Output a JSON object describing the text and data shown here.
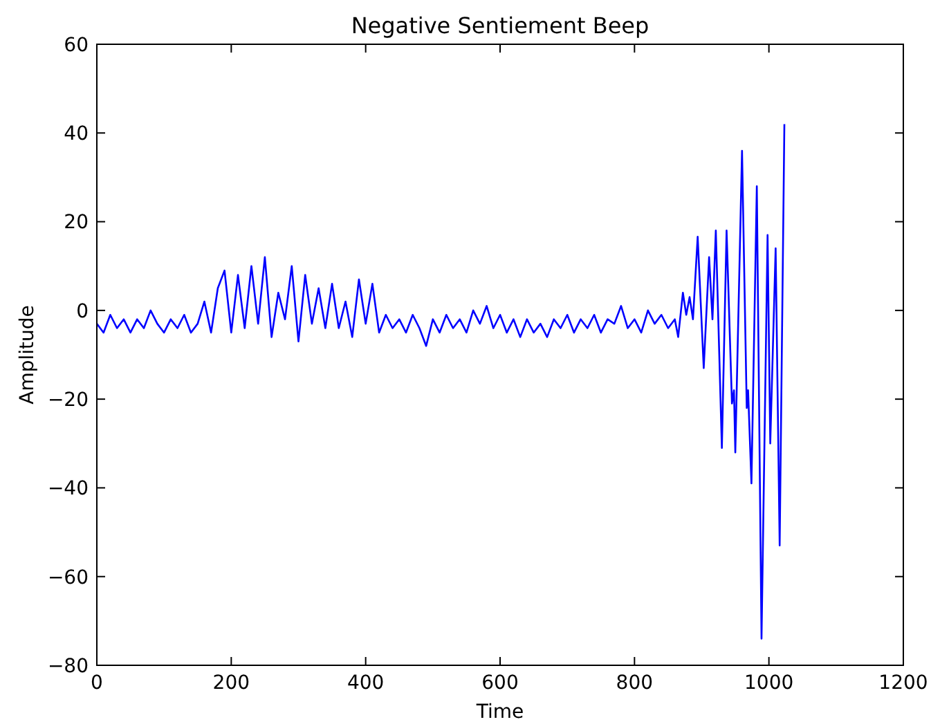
{
  "chart_data": {
    "type": "line",
    "title": "Negative Sentiement Beep",
    "xlabel": "Time",
    "ylabel": "Amplitude",
    "xlim": [
      0,
      1200
    ],
    "xticks": [
      0,
      200,
      400,
      600,
      800,
      1000,
      1200
    ],
    "ylim": [
      -80,
      60
    ],
    "yticks": [
      -80,
      -60,
      -40,
      -20,
      0,
      20,
      40,
      60
    ],
    "marker": "none",
    "line_style": "solid",
    "series": [
      {
        "color": "#0000ff",
        "x": [
          0,
          10,
          20,
          30,
          40,
          50,
          60,
          70,
          80,
          90,
          100,
          110,
          120,
          130,
          140,
          150,
          160,
          170,
          180,
          190,
          200,
          210,
          220,
          230,
          240,
          250,
          260,
          270,
          280,
          290,
          300,
          310,
          320,
          330,
          340,
          350,
          360,
          370,
          380,
          390,
          400,
          410,
          420,
          430,
          440,
          450,
          460,
          470,
          480,
          490,
          500,
          510,
          520,
          530,
          540,
          550,
          560,
          570,
          580,
          590,
          600,
          610,
          620,
          630,
          640,
          650,
          660,
          670,
          680,
          690,
          700,
          710,
          720,
          730,
          740,
          750,
          760,
          770,
          780,
          790,
          800,
          810,
          820,
          830,
          840,
          850,
          860,
          865,
          872,
          877,
          882,
          887,
          894,
          903,
          911,
          916,
          921,
          930,
          937,
          945,
          948,
          950,
          960,
          967,
          969,
          974,
          982,
          989,
          998,
          1002,
          1010,
          1016,
          1023
        ],
        "values": [
          -3,
          -5,
          -1,
          -4,
          -2,
          -5,
          -2,
          -4,
          0,
          -3,
          -5,
          -2,
          -4,
          -1,
          -5,
          -3,
          2,
          -5,
          5,
          9,
          -5,
          8,
          -4,
          10,
          -3,
          12,
          -6,
          4,
          -2,
          10,
          -7,
          8,
          -3,
          5,
          -4,
          6,
          -4,
          2,
          -6,
          7,
          -3,
          6,
          -5,
          -1,
          -4,
          -2,
          -5,
          -1,
          -4,
          -8,
          -2,
          -5,
          -1,
          -4,
          -2,
          -5,
          0,
          -3,
          1,
          -4,
          -1,
          -5,
          -2,
          -6,
          -2,
          -5,
          -3,
          -6,
          -2,
          -4,
          -1,
          -5,
          -2,
          -4,
          -1,
          -5,
          -2,
          -3,
          1,
          -4,
          -2,
          -5,
          0,
          -3,
          -1,
          -4,
          -2,
          -6,
          4,
          -1,
          3,
          -2,
          16.6,
          -13,
          12,
          -2,
          18,
          -31,
          18,
          -21,
          -18,
          -32,
          36,
          -22,
          -18,
          -39,
          28,
          -74,
          17,
          -30,
          14,
          -53,
          42
        ]
      }
    ]
  }
}
